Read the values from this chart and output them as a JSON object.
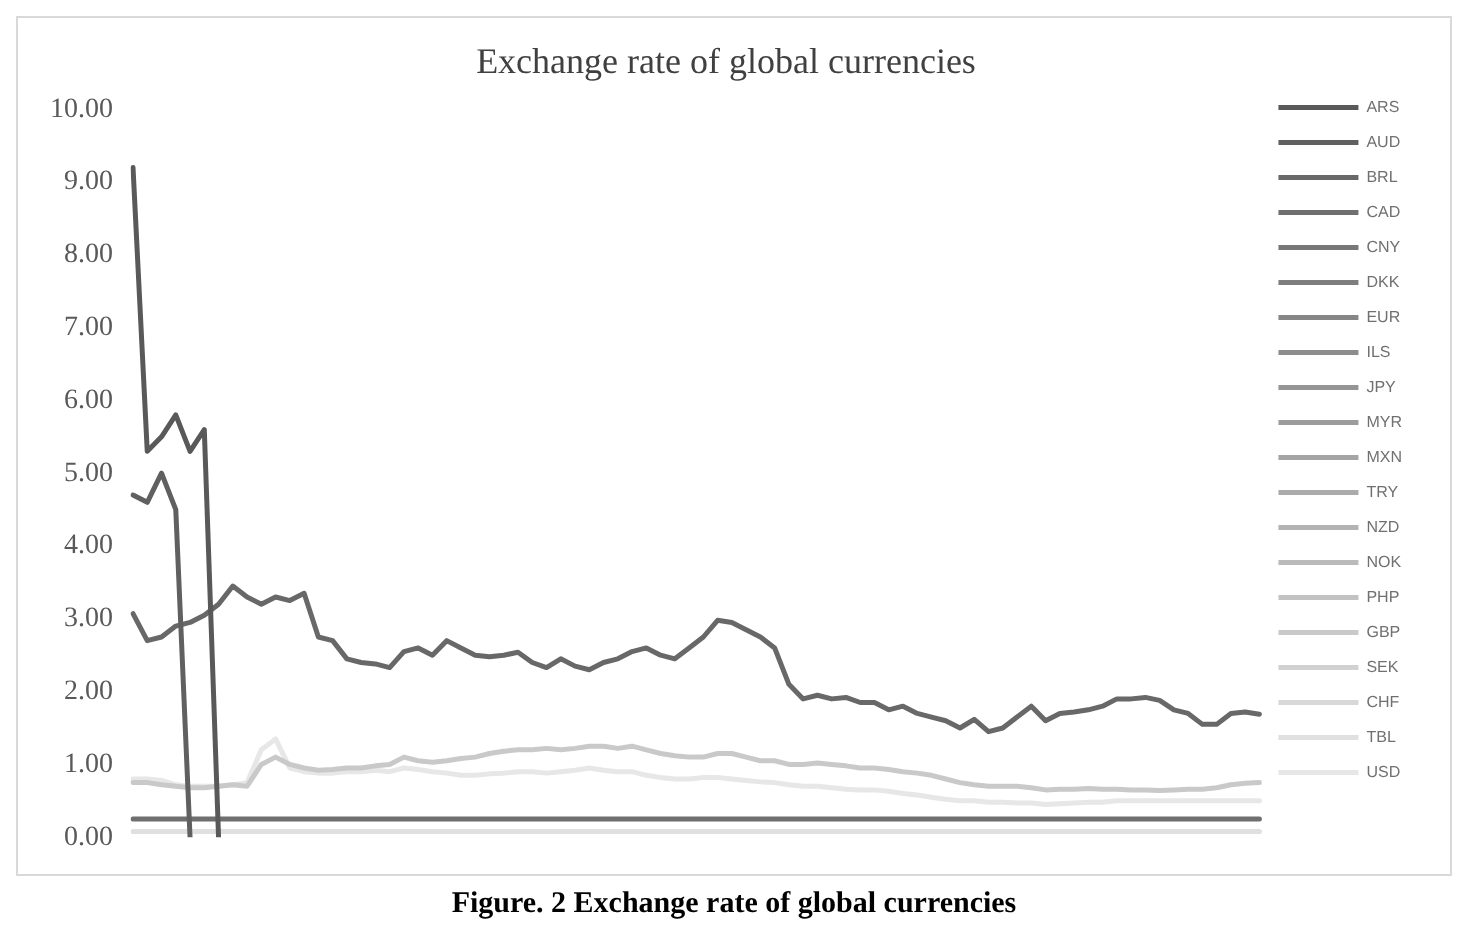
{
  "chart_data": {
    "type": "line",
    "title": "Exchange rate of global currencies",
    "annotations": [
      "Figure. 2 Exchange rate of global currencies"
    ],
    "categories": [
      null,
      null,
      null,
      null,
      null,
      null,
      null,
      null,
      null,
      null,
      null,
      null,
      null,
      null,
      null,
      null,
      null,
      null,
      null,
      null,
      null,
      null,
      null,
      null,
      null,
      null,
      null,
      null,
      null,
      null,
      null,
      null,
      null,
      null,
      null,
      null,
      null,
      null,
      null,
      null,
      null,
      null,
      null,
      null,
      null,
      null,
      null,
      null,
      null,
      null,
      null,
      null,
      null,
      null,
      null,
      null,
      null,
      null,
      null,
      null,
      null,
      null,
      null,
      null,
      null,
      null,
      null,
      null,
      null,
      null,
      null,
      null,
      null,
      null,
      null,
      null,
      null,
      null,
      null,
      null
    ],
    "ylim": [
      0,
      10
    ],
    "yticks": [
      {
        "value": 0,
        "label": "0.00"
      },
      {
        "value": 1,
        "label": "1.00"
      },
      {
        "value": 2,
        "label": "2.00"
      },
      {
        "value": 3,
        "label": "3.00"
      },
      {
        "value": 4,
        "label": "4.00"
      },
      {
        "value": 5,
        "label": "5.00"
      },
      {
        "value": 6,
        "label": "6.00"
      },
      {
        "value": 7,
        "label": "7.00"
      },
      {
        "value": 8,
        "label": "8.00"
      },
      {
        "value": 9,
        "label": "9.00"
      },
      {
        "value": 10,
        "label": "10.00"
      }
    ],
    "grid": false,
    "legend": "right",
    "marker": "none",
    "line_style": "solid",
    "tick_labels": "y",
    "series": [
      {
        "name": "ARS",
        "color": "#595959",
        "values": [
          9.2,
          5.3,
          5.5,
          5.8,
          5.3,
          5.6,
          0,
          null,
          null,
          null,
          null,
          null,
          null,
          null,
          null,
          null,
          null,
          null,
          null,
          null,
          null,
          null,
          null,
          null,
          null,
          null,
          null,
          null,
          null,
          null,
          null,
          null,
          null,
          null,
          null,
          null,
          null,
          null,
          null,
          null,
          null,
          null,
          null,
          null,
          null,
          null,
          null,
          null,
          null,
          null,
          null,
          null,
          null,
          null,
          null,
          null,
          null,
          null,
          null,
          null,
          null,
          null,
          null,
          null,
          null,
          null,
          null,
          null,
          null,
          null,
          null,
          null,
          null,
          null,
          null,
          null,
          null,
          null,
          null,
          null
        ]
      },
      {
        "name": "AUD",
        "color": "#606060",
        "values": [
          4.7,
          4.6,
          5.0,
          4.5,
          0,
          null,
          null,
          null,
          null,
          null,
          null,
          null,
          null,
          null,
          null,
          null,
          null,
          null,
          null,
          null,
          null,
          null,
          null,
          null,
          null,
          null,
          null,
          null,
          null,
          null,
          null,
          null,
          null,
          null,
          null,
          null,
          null,
          null,
          null,
          null,
          null,
          null,
          null,
          null,
          null,
          null,
          null,
          null,
          null,
          null,
          null,
          null,
          null,
          null,
          null,
          null,
          null,
          null,
          null,
          null,
          null,
          null,
          null,
          null,
          null,
          null,
          null,
          null,
          null,
          null,
          null,
          null,
          null,
          null,
          null,
          null,
          null,
          null,
          null,
          null
        ]
      },
      {
        "name": "BRL",
        "color": "#686868",
        "values": [
          3.07,
          2.7,
          2.75,
          2.9,
          2.95,
          3.05,
          3.2,
          3.45,
          3.3,
          3.2,
          3.3,
          3.25,
          3.35,
          2.75,
          2.7,
          2.45,
          2.4,
          2.38,
          2.33,
          2.55,
          2.6,
          2.5,
          2.7,
          2.6,
          2.5,
          2.48,
          2.5,
          2.54,
          2.4,
          2.33,
          2.45,
          2.35,
          2.3,
          2.4,
          2.45,
          2.55,
          2.6,
          2.5,
          2.45,
          2.6,
          2.75,
          2.98,
          2.95,
          2.85,
          2.75,
          2.6,
          2.1,
          1.9,
          1.95,
          1.9,
          1.92,
          1.85,
          1.85,
          1.75,
          1.8,
          1.7,
          1.65,
          1.6,
          1.5,
          1.62,
          1.45,
          1.5,
          1.65,
          1.8,
          1.6,
          1.7,
          1.72,
          1.75,
          1.8,
          1.9,
          1.9,
          1.92,
          1.88,
          1.75,
          1.7,
          1.55,
          1.55,
          1.7,
          1.72,
          1.69
        ]
      },
      {
        "name": "CAD",
        "color": "#6f6f6f",
        "values": [
          0.25,
          0.25,
          0.25,
          0.25,
          0.25,
          0.25,
          0.25,
          0.25,
          0.25,
          0.25,
          0.25,
          0.25,
          0.25,
          0.25,
          0.25,
          0.25,
          0.25,
          0.25,
          0.25,
          0.25,
          0.25,
          0.25,
          0.25,
          0.25,
          0.25,
          0.25,
          0.25,
          0.25,
          0.25,
          0.25,
          0.25,
          0.25,
          0.25,
          0.25,
          0.25,
          0.25,
          0.25,
          0.25,
          0.25,
          0.25,
          0.25,
          0.25,
          0.25,
          0.25,
          0.25,
          0.25,
          0.25,
          0.25,
          0.25,
          0.25,
          0.25,
          0.25,
          0.25,
          0.25,
          0.25,
          0.25,
          0.25,
          0.25,
          0.25,
          0.25,
          0.25,
          0.25,
          0.25,
          0.25,
          0.25,
          0.25,
          0.25,
          0.25,
          0.25,
          0.25,
          0.25,
          0.25,
          0.25,
          0.25,
          0.25,
          0.25,
          0.25,
          0.25,
          0.25,
          0.25
        ]
      },
      {
        "name": "CNY",
        "color": "#777777",
        "values": [
          null,
          null,
          null,
          null,
          null,
          null,
          null,
          null,
          null,
          null,
          null,
          null,
          null,
          null,
          null,
          null,
          null,
          null,
          null,
          null,
          null,
          null,
          null,
          null,
          null,
          null,
          null,
          null,
          null,
          null,
          null,
          null,
          null,
          null,
          null,
          null,
          null,
          null,
          null,
          null,
          null,
          null,
          null,
          null,
          null,
          null,
          null,
          null,
          null,
          null,
          null,
          null,
          null,
          null,
          null,
          null,
          null,
          null,
          null,
          null,
          null,
          null,
          null,
          null,
          null,
          null,
          null,
          null,
          null,
          null,
          null,
          null,
          null,
          null,
          null,
          null,
          null,
          null,
          null,
          null
        ]
      },
      {
        "name": "DKK",
        "color": "#7e7e7e",
        "values": [
          null,
          null,
          null,
          null,
          null,
          null,
          null,
          null,
          null,
          null,
          null,
          null,
          null,
          null,
          null,
          null,
          null,
          null,
          null,
          null,
          null,
          null,
          null,
          null,
          null,
          null,
          null,
          null,
          null,
          null,
          null,
          null,
          null,
          null,
          null,
          null,
          null,
          null,
          null,
          null,
          null,
          null,
          null,
          null,
          null,
          null,
          null,
          null,
          null,
          null,
          null,
          null,
          null,
          null,
          null,
          null,
          null,
          null,
          null,
          null,
          null,
          null,
          null,
          null,
          null,
          null,
          null,
          null,
          null,
          null,
          null,
          null,
          null,
          null,
          null,
          null,
          null,
          null,
          null,
          null
        ]
      },
      {
        "name": "EUR",
        "color": "#868686",
        "values": [
          null,
          null,
          null,
          null,
          null,
          null,
          null,
          null,
          null,
          null,
          null,
          null,
          null,
          null,
          null,
          null,
          null,
          null,
          null,
          null,
          null,
          null,
          null,
          null,
          null,
          null,
          null,
          null,
          null,
          null,
          null,
          null,
          null,
          null,
          null,
          null,
          null,
          null,
          null,
          null,
          null,
          null,
          null,
          null,
          null,
          null,
          null,
          null,
          null,
          null,
          null,
          null,
          null,
          null,
          null,
          null,
          null,
          null,
          null,
          null,
          null,
          null,
          null,
          null,
          null,
          null,
          null,
          null,
          null,
          null,
          null,
          null,
          null,
          null,
          null,
          null,
          null,
          null,
          null,
          null
        ]
      },
      {
        "name": "ILS",
        "color": "#8d8d8d",
        "values": [
          null,
          null,
          null,
          null,
          null,
          null,
          null,
          null,
          null,
          null,
          null,
          null,
          null,
          null,
          null,
          null,
          null,
          null,
          null,
          null,
          null,
          null,
          null,
          null,
          null,
          null,
          null,
          null,
          null,
          null,
          null,
          null,
          null,
          null,
          null,
          null,
          null,
          null,
          null,
          null,
          null,
          null,
          null,
          null,
          null,
          null,
          null,
          null,
          null,
          null,
          null,
          null,
          null,
          null,
          null,
          null,
          null,
          null,
          null,
          null,
          null,
          null,
          null,
          null,
          null,
          null,
          null,
          null,
          null,
          null,
          null,
          null,
          null,
          null,
          null,
          null,
          null,
          null,
          null,
          null
        ]
      },
      {
        "name": "JPY",
        "color": "#959595",
        "values": [
          null,
          null,
          null,
          null,
          null,
          null,
          null,
          null,
          null,
          null,
          null,
          null,
          null,
          null,
          null,
          null,
          null,
          null,
          null,
          null,
          null,
          null,
          null,
          null,
          null,
          null,
          null,
          null,
          null,
          null,
          null,
          null,
          null,
          null,
          null,
          null,
          null,
          null,
          null,
          null,
          null,
          null,
          null,
          null,
          null,
          null,
          null,
          null,
          null,
          null,
          null,
          null,
          null,
          null,
          null,
          null,
          null,
          null,
          null,
          null,
          null,
          null,
          null,
          null,
          null,
          null,
          null,
          null,
          null,
          null,
          null,
          null,
          null,
          null,
          null,
          null,
          null,
          null,
          null,
          null
        ]
      },
      {
        "name": "MYR",
        "color": "#9c9c9c",
        "values": [
          null,
          null,
          null,
          null,
          null,
          null,
          null,
          null,
          null,
          null,
          null,
          null,
          null,
          null,
          null,
          null,
          null,
          null,
          null,
          null,
          null,
          null,
          null,
          null,
          null,
          null,
          null,
          null,
          null,
          null,
          null,
          null,
          null,
          null,
          null,
          null,
          null,
          null,
          null,
          null,
          null,
          null,
          null,
          null,
          null,
          null,
          null,
          null,
          null,
          null,
          null,
          null,
          null,
          null,
          null,
          null,
          null,
          null,
          null,
          null,
          null,
          null,
          null,
          null,
          null,
          null,
          null,
          null,
          null,
          null,
          null,
          null,
          null,
          null,
          null,
          null,
          null,
          null,
          null,
          null
        ]
      },
      {
        "name": "MXN",
        "color": "#a4a4a4",
        "values": [
          null,
          null,
          null,
          null,
          null,
          null,
          null,
          null,
          null,
          null,
          null,
          null,
          null,
          null,
          null,
          null,
          null,
          null,
          null,
          null,
          null,
          null,
          null,
          null,
          null,
          null,
          null,
          null,
          null,
          null,
          null,
          null,
          null,
          null,
          null,
          null,
          null,
          null,
          null,
          null,
          null,
          null,
          null,
          null,
          null,
          null,
          null,
          null,
          null,
          null,
          null,
          null,
          null,
          null,
          null,
          null,
          null,
          null,
          null,
          null,
          null,
          null,
          null,
          null,
          null,
          null,
          null,
          null,
          null,
          null,
          null,
          null,
          null,
          null,
          null,
          null,
          null,
          null,
          null,
          null
        ]
      },
      {
        "name": "TRY",
        "color": "#ababab",
        "values": [
          null,
          null,
          null,
          null,
          null,
          null,
          null,
          null,
          null,
          null,
          null,
          null,
          null,
          null,
          null,
          null,
          null,
          null,
          null,
          null,
          null,
          null,
          null,
          null,
          null,
          null,
          null,
          null,
          null,
          null,
          null,
          null,
          null,
          null,
          null,
          null,
          null,
          null,
          null,
          null,
          null,
          null,
          null,
          null,
          null,
          null,
          null,
          null,
          null,
          null,
          null,
          null,
          null,
          null,
          null,
          null,
          null,
          null,
          null,
          null,
          null,
          null,
          null,
          null,
          null,
          null,
          null,
          null,
          null,
          null,
          null,
          null,
          null,
          null,
          null,
          null,
          null,
          null,
          null,
          null
        ]
      },
      {
        "name": "NZD",
        "color": "#b3b3b3",
        "values": [
          null,
          null,
          null,
          null,
          null,
          null,
          null,
          null,
          null,
          null,
          null,
          null,
          null,
          null,
          null,
          null,
          null,
          null,
          null,
          null,
          null,
          null,
          null,
          null,
          null,
          null,
          null,
          null,
          null,
          null,
          null,
          null,
          null,
          null,
          null,
          null,
          null,
          null,
          null,
          null,
          null,
          null,
          null,
          null,
          null,
          null,
          null,
          null,
          null,
          null,
          null,
          null,
          null,
          null,
          null,
          null,
          null,
          null,
          null,
          null,
          null,
          null,
          null,
          null,
          null,
          null,
          null,
          null,
          null,
          null,
          null,
          null,
          null,
          null,
          null,
          null,
          null,
          null,
          null,
          null
        ]
      },
      {
        "name": "NOK",
        "color": "#bababa",
        "values": [
          null,
          null,
          null,
          null,
          null,
          null,
          null,
          null,
          null,
          null,
          null,
          null,
          null,
          null,
          null,
          null,
          null,
          null,
          null,
          null,
          null,
          null,
          null,
          null,
          null,
          null,
          null,
          null,
          null,
          null,
          null,
          null,
          null,
          null,
          null,
          null,
          null,
          null,
          null,
          null,
          null,
          null,
          null,
          null,
          null,
          null,
          null,
          null,
          null,
          null,
          null,
          null,
          null,
          null,
          null,
          null,
          null,
          null,
          null,
          null,
          null,
          null,
          null,
          null,
          null,
          null,
          null,
          null,
          null,
          null,
          null,
          null,
          null,
          null,
          null,
          null,
          null,
          null,
          null,
          null
        ]
      },
      {
        "name": "PHP",
        "color": "#c2c2c2",
        "values": [
          null,
          null,
          null,
          null,
          null,
          null,
          null,
          null,
          null,
          null,
          null,
          null,
          null,
          null,
          null,
          null,
          null,
          null,
          null,
          null,
          null,
          null,
          null,
          null,
          null,
          null,
          null,
          null,
          null,
          null,
          null,
          null,
          null,
          null,
          null,
          null,
          null,
          null,
          null,
          null,
          null,
          null,
          null,
          null,
          null,
          null,
          null,
          null,
          null,
          null,
          null,
          null,
          null,
          null,
          null,
          null,
          null,
          null,
          null,
          null,
          null,
          null,
          null,
          null,
          null,
          null,
          null,
          null,
          null,
          null,
          null,
          null,
          null,
          null,
          null,
          null,
          null,
          null,
          null,
          null
        ]
      },
      {
        "name": "GBP",
        "color": "#c9c9c9",
        "values": [
          0.75,
          0.75,
          0.72,
          0.7,
          0.68,
          0.68,
          0.7,
          0.72,
          0.7,
          1.0,
          1.1,
          1.0,
          0.95,
          0.92,
          0.93,
          0.95,
          0.95,
          0.98,
          1.0,
          1.1,
          1.05,
          1.03,
          1.05,
          1.08,
          1.1,
          1.15,
          1.18,
          1.2,
          1.2,
          1.22,
          1.2,
          1.22,
          1.25,
          1.25,
          1.22,
          1.25,
          1.2,
          1.15,
          1.12,
          1.1,
          1.1,
          1.15,
          1.15,
          1.1,
          1.05,
          1.05,
          1.0,
          1.0,
          1.02,
          1.0,
          0.98,
          0.95,
          0.95,
          0.93,
          0.9,
          0.88,
          0.85,
          0.8,
          0.75,
          0.72,
          0.7,
          0.7,
          0.7,
          0.68,
          0.65,
          0.66,
          0.66,
          0.67,
          0.66,
          0.66,
          0.65,
          0.65,
          0.64,
          0.65,
          0.66,
          0.66,
          0.68,
          0.72,
          0.74,
          0.75
        ]
      },
      {
        "name": "SEK",
        "color": "#d1d1d1",
        "values": [
          null,
          null,
          null,
          null,
          null,
          null,
          null,
          null,
          null,
          null,
          null,
          null,
          null,
          null,
          null,
          null,
          null,
          null,
          null,
          null,
          null,
          null,
          null,
          null,
          null,
          null,
          null,
          null,
          null,
          null,
          null,
          null,
          null,
          null,
          null,
          null,
          null,
          null,
          null,
          null,
          null,
          null,
          null,
          null,
          null,
          null,
          null,
          null,
          null,
          null,
          null,
          null,
          null,
          null,
          null,
          null,
          null,
          null,
          null,
          null,
          null,
          null,
          null,
          null,
          null,
          null,
          null,
          null,
          null,
          null,
          null,
          null,
          null,
          null,
          null,
          null,
          null,
          null,
          null,
          null
        ]
      },
      {
        "name": "CHF",
        "color": "#d8d8d8",
        "values": [
          null,
          null,
          null,
          null,
          null,
          null,
          null,
          null,
          null,
          null,
          null,
          null,
          null,
          null,
          null,
          null,
          null,
          null,
          null,
          null,
          null,
          null,
          null,
          null,
          null,
          null,
          null,
          null,
          null,
          null,
          null,
          null,
          null,
          null,
          null,
          null,
          null,
          null,
          null,
          null,
          null,
          null,
          null,
          null,
          null,
          null,
          null,
          null,
          null,
          null,
          null,
          null,
          null,
          null,
          null,
          null,
          null,
          null,
          null,
          null,
          null,
          null,
          null,
          null,
          null,
          null,
          null,
          null,
          null,
          null,
          null,
          null,
          null,
          null,
          null,
          null,
          null,
          null,
          null,
          null
        ]
      },
      {
        "name": "TBL",
        "color": "#e0e0e0",
        "values": [
          0.08,
          0.08,
          0.08,
          0.08,
          0.08,
          0.08,
          0.08,
          0.08,
          0.08,
          0.08,
          0.08,
          0.08,
          0.08,
          0.08,
          0.08,
          0.08,
          0.08,
          0.08,
          0.08,
          0.08,
          0.08,
          0.08,
          0.08,
          0.08,
          0.08,
          0.08,
          0.08,
          0.08,
          0.08,
          0.08,
          0.08,
          0.08,
          0.08,
          0.08,
          0.08,
          0.08,
          0.08,
          0.08,
          0.08,
          0.08,
          0.08,
          0.08,
          0.08,
          0.08,
          0.08,
          0.08,
          0.08,
          0.08,
          0.08,
          0.08,
          0.08,
          0.08,
          0.08,
          0.08,
          0.08,
          0.08,
          0.08,
          0.08,
          0.08,
          0.08,
          0.08,
          0.08,
          0.08,
          0.08,
          0.08,
          0.08,
          0.08,
          0.08,
          0.08,
          0.08,
          0.08,
          0.08,
          0.08,
          0.08,
          0.08,
          0.08,
          0.08,
          0.08,
          0.08,
          0.08
        ]
      },
      {
        "name": "USD",
        "color": "#e7e7e7",
        "values": [
          0.8,
          0.8,
          0.78,
          0.72,
          0.7,
          0.7,
          0.7,
          0.72,
          0.75,
          1.2,
          1.35,
          0.95,
          0.9,
          0.88,
          0.88,
          0.9,
          0.9,
          0.92,
          0.9,
          0.95,
          0.93,
          0.9,
          0.88,
          0.85,
          0.85,
          0.87,
          0.88,
          0.9,
          0.9,
          0.88,
          0.9,
          0.92,
          0.95,
          0.92,
          0.9,
          0.9,
          0.85,
          0.82,
          0.8,
          0.8,
          0.82,
          0.82,
          0.8,
          0.78,
          0.76,
          0.75,
          0.72,
          0.7,
          0.7,
          0.68,
          0.66,
          0.65,
          0.65,
          0.63,
          0.6,
          0.58,
          0.55,
          0.52,
          0.5,
          0.5,
          0.48,
          0.48,
          0.47,
          0.47,
          0.45,
          0.46,
          0.47,
          0.48,
          0.48,
          0.5,
          0.5,
          0.5,
          0.5,
          0.5,
          0.5,
          0.5,
          0.5,
          0.5,
          0.5,
          0.5
        ]
      }
    ]
  }
}
